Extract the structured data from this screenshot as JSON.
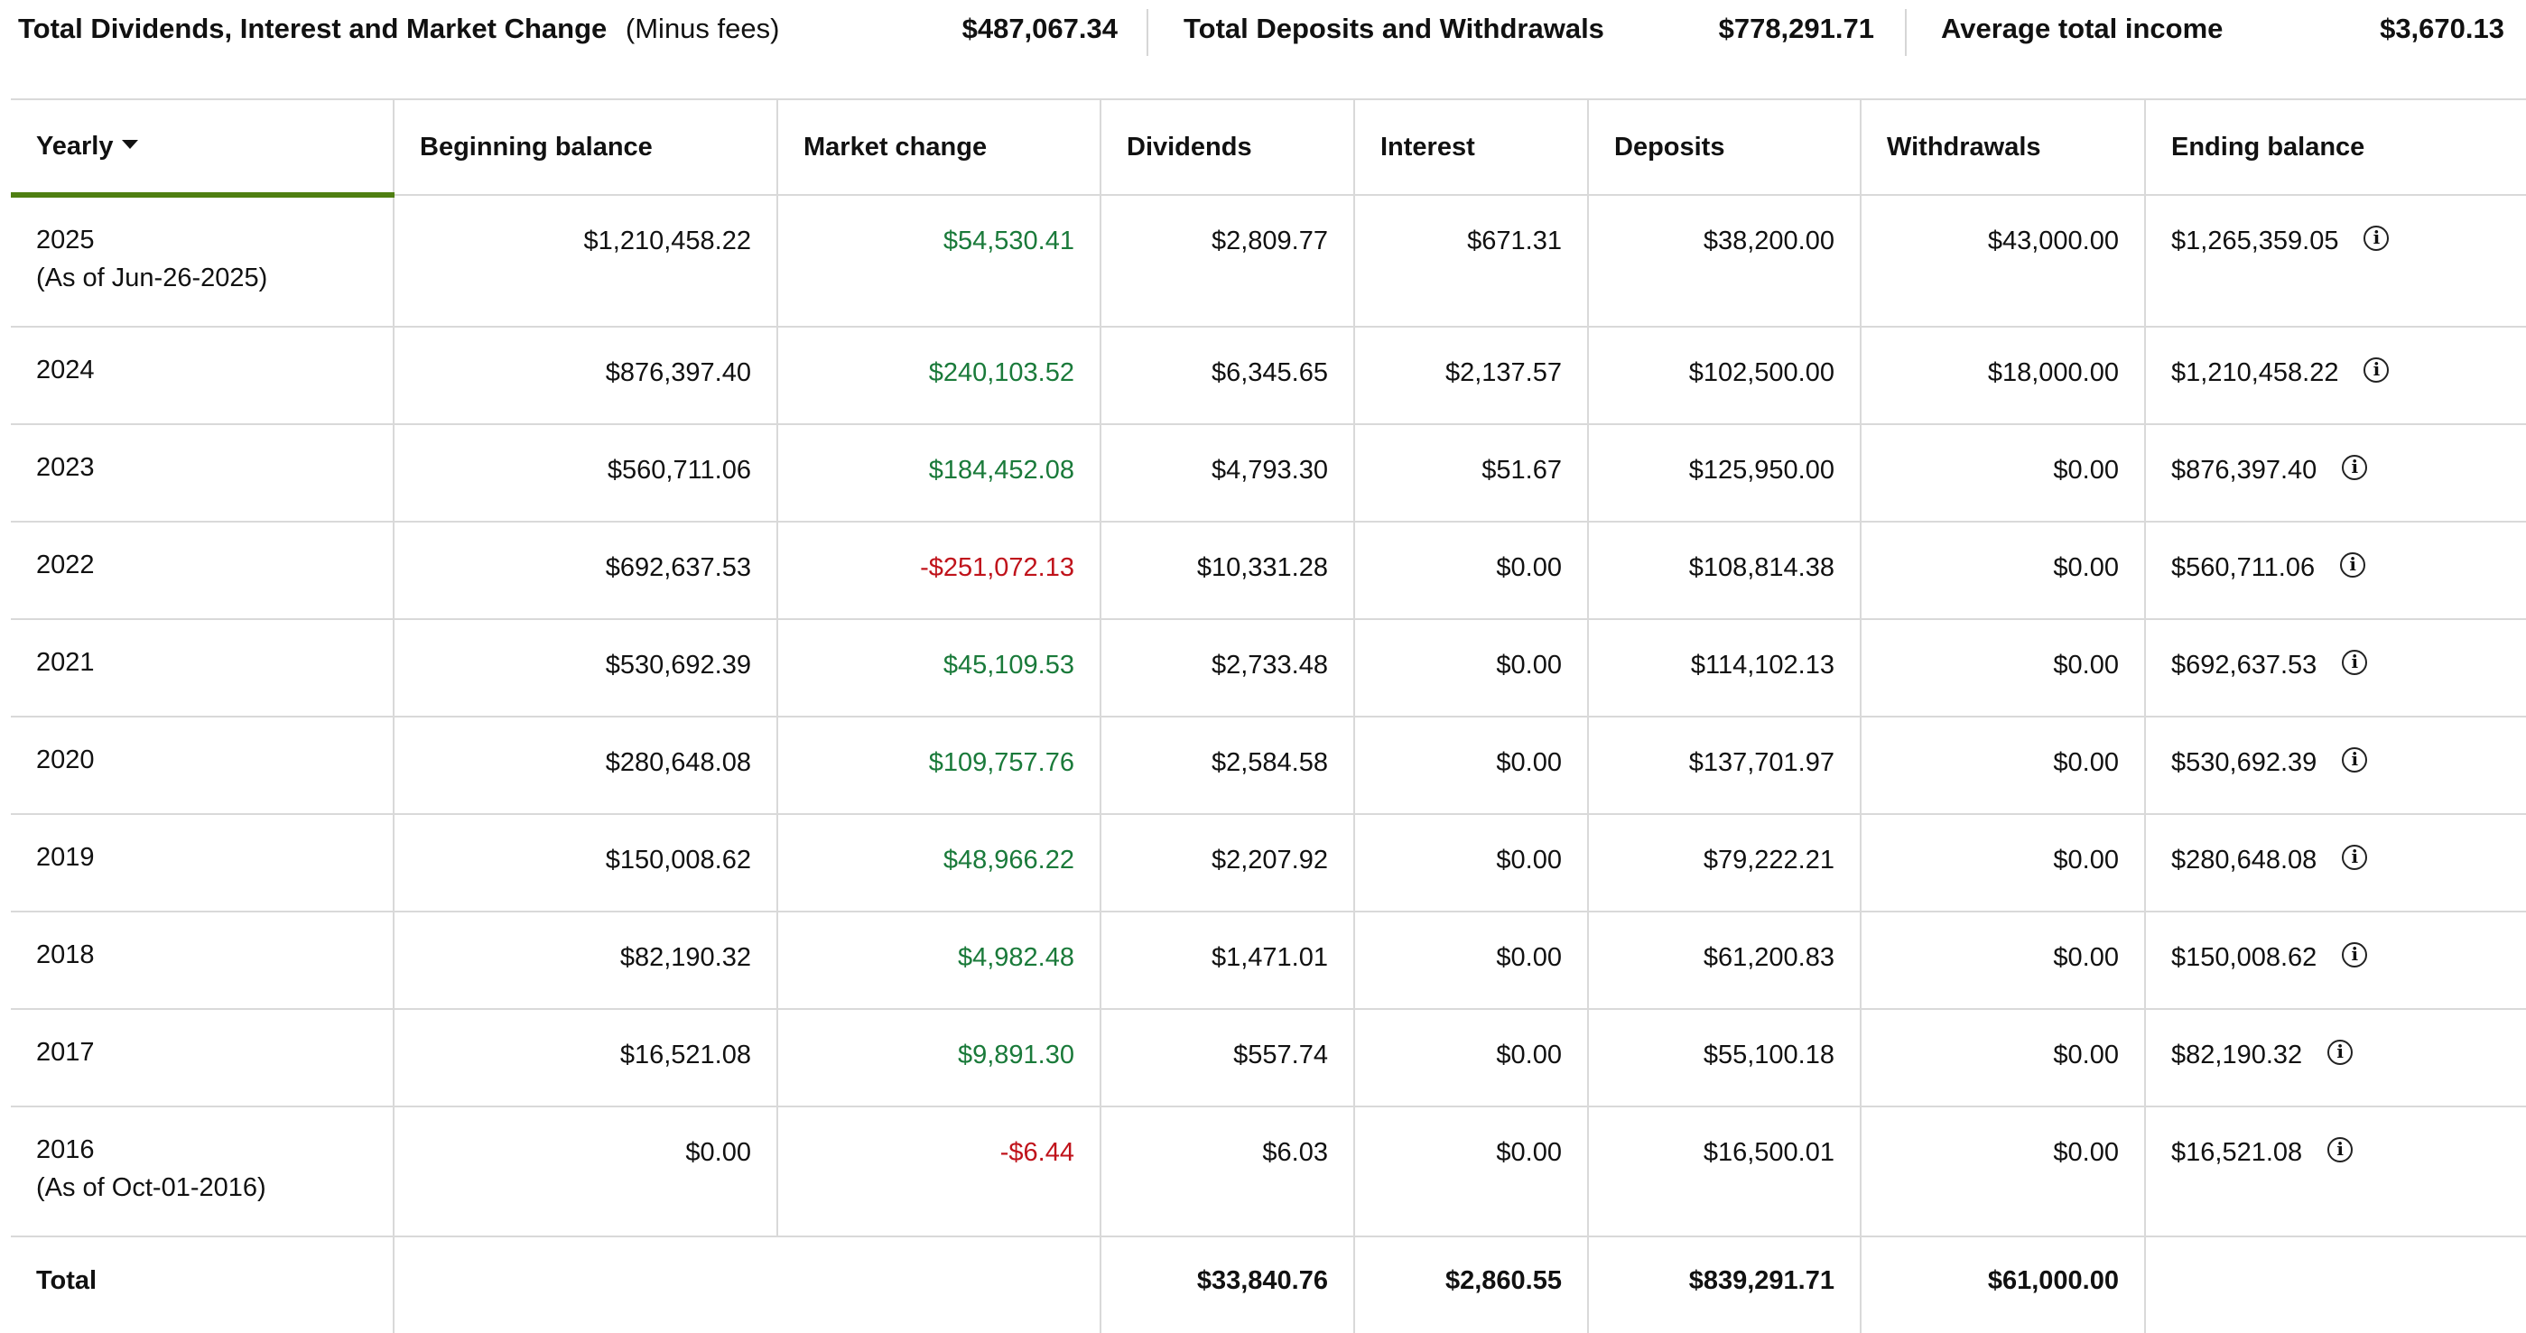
{
  "summary": {
    "dividends_label": "Total Dividends, Interest and Market Change",
    "dividends_note": "(Minus fees)",
    "dividends_value": "$487,067.34",
    "deposits_label": "Total Deposits and Withdrawals",
    "deposits_value": "$778,291.71",
    "income_label": "Average total income",
    "income_value": "$3,670.13"
  },
  "table": {
    "headers": {
      "period": "Yearly",
      "beginning": "Beginning balance",
      "market": "Market change",
      "dividends": "Dividends",
      "interest": "Interest",
      "deposits": "Deposits",
      "withdrawals": "Withdrawals",
      "ending": "Ending balance"
    },
    "rows": [
      {
        "year": "2025",
        "note": "(As of Jun-26-2025)",
        "beginning": "$1,210,458.22",
        "market": "$54,530.41",
        "market_sign": "pos",
        "dividends": "$2,809.77",
        "interest": "$671.31",
        "deposits": "$38,200.00",
        "withdrawals": "$43,000.00",
        "ending": "$1,265,359.05"
      },
      {
        "year": "2024",
        "note": "",
        "beginning": "$876,397.40",
        "market": "$240,103.52",
        "market_sign": "pos",
        "dividends": "$6,345.65",
        "interest": "$2,137.57",
        "deposits": "$102,500.00",
        "withdrawals": "$18,000.00",
        "ending": "$1,210,458.22"
      },
      {
        "year": "2023",
        "note": "",
        "beginning": "$560,711.06",
        "market": "$184,452.08",
        "market_sign": "pos",
        "dividends": "$4,793.30",
        "interest": "$51.67",
        "deposits": "$125,950.00",
        "withdrawals": "$0.00",
        "ending": "$876,397.40"
      },
      {
        "year": "2022",
        "note": "",
        "beginning": "$692,637.53",
        "market": "-$251,072.13",
        "market_sign": "neg",
        "dividends": "$10,331.28",
        "interest": "$0.00",
        "deposits": "$108,814.38",
        "withdrawals": "$0.00",
        "ending": "$560,711.06"
      },
      {
        "year": "2021",
        "note": "",
        "beginning": "$530,692.39",
        "market": "$45,109.53",
        "market_sign": "pos",
        "dividends": "$2,733.48",
        "interest": "$0.00",
        "deposits": "$114,102.13",
        "withdrawals": "$0.00",
        "ending": "$692,637.53"
      },
      {
        "year": "2020",
        "note": "",
        "beginning": "$280,648.08",
        "market": "$109,757.76",
        "market_sign": "pos",
        "dividends": "$2,584.58",
        "interest": "$0.00",
        "deposits": "$137,701.97",
        "withdrawals": "$0.00",
        "ending": "$530,692.39"
      },
      {
        "year": "2019",
        "note": "",
        "beginning": "$150,008.62",
        "market": "$48,966.22",
        "market_sign": "pos",
        "dividends": "$2,207.92",
        "interest": "$0.00",
        "deposits": "$79,222.21",
        "withdrawals": "$0.00",
        "ending": "$280,648.08"
      },
      {
        "year": "2018",
        "note": "",
        "beginning": "$82,190.32",
        "market": "$4,982.48",
        "market_sign": "pos",
        "dividends": "$1,471.01",
        "interest": "$0.00",
        "deposits": "$61,200.83",
        "withdrawals": "$0.00",
        "ending": "$150,008.62"
      },
      {
        "year": "2017",
        "note": "",
        "beginning": "$16,521.08",
        "market": "$9,891.30",
        "market_sign": "pos",
        "dividends": "$557.74",
        "interest": "$0.00",
        "deposits": "$55,100.18",
        "withdrawals": "$0.00",
        "ending": "$82,190.32"
      },
      {
        "year": "2016",
        "note": "(As of Oct-01-2016)",
        "beginning": "$0.00",
        "market": "-$6.44",
        "market_sign": "neg",
        "dividends": "$6.03",
        "interest": "$0.00",
        "deposits": "$16,500.01",
        "withdrawals": "$0.00",
        "ending": "$16,521.08"
      }
    ],
    "total": {
      "label": "Total",
      "dividends": "$33,840.76",
      "interest": "$2,860.55",
      "deposits": "$839,291.71",
      "withdrawals": "$61,000.00"
    }
  },
  "colors": {
    "positive": "#1a7a3a",
    "negative": "#c0131b",
    "sort_underline": "#4f7f12",
    "border": "#d9d9d9"
  },
  "icons": {
    "sort": "caret-down-icon",
    "info": "info-icon"
  }
}
